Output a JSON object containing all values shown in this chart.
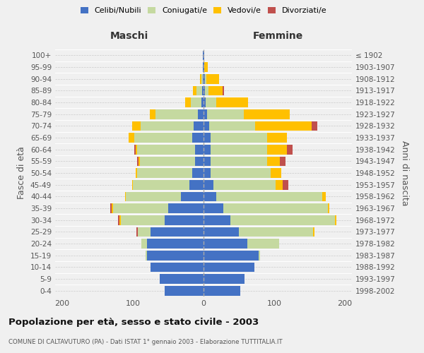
{
  "age_groups": [
    "0-4",
    "5-9",
    "10-14",
    "15-19",
    "20-24",
    "25-29",
    "30-34",
    "35-39",
    "40-44",
    "45-49",
    "50-54",
    "55-59",
    "60-64",
    "65-69",
    "70-74",
    "75-79",
    "80-84",
    "85-89",
    "90-94",
    "95-99",
    "100+"
  ],
  "birth_years": [
    "1998-2002",
    "1993-1997",
    "1988-1992",
    "1983-1987",
    "1978-1982",
    "1973-1977",
    "1968-1972",
    "1963-1967",
    "1958-1962",
    "1953-1957",
    "1948-1952",
    "1943-1947",
    "1938-1942",
    "1933-1937",
    "1928-1932",
    "1923-1927",
    "1918-1922",
    "1913-1917",
    "1908-1912",
    "1903-1907",
    "≤ 1902"
  ],
  "maschi": {
    "celibi": [
      55,
      62,
      75,
      80,
      80,
      75,
      55,
      50,
      32,
      20,
      16,
      12,
      12,
      16,
      14,
      8,
      3,
      2,
      1,
      1,
      1
    ],
    "coniugati": [
      0,
      0,
      0,
      2,
      8,
      18,
      62,
      78,
      78,
      80,
      78,
      78,
      82,
      82,
      75,
      60,
      15,
      8,
      2,
      0,
      0
    ],
    "vedovi": [
      0,
      0,
      0,
      0,
      0,
      0,
      2,
      2,
      1,
      1,
      2,
      2,
      2,
      8,
      12,
      8,
      8,
      5,
      2,
      0,
      0
    ],
    "divorziati": [
      0,
      0,
      0,
      0,
      0,
      2,
      2,
      2,
      0,
      0,
      0,
      2,
      2,
      0,
      0,
      0,
      0,
      0,
      0,
      0,
      0
    ]
  },
  "femmine": {
    "nubili": [
      52,
      58,
      72,
      78,
      62,
      50,
      38,
      28,
      18,
      14,
      10,
      10,
      10,
      10,
      8,
      5,
      3,
      2,
      2,
      1,
      1
    ],
    "coniugate": [
      0,
      0,
      0,
      2,
      45,
      105,
      148,
      148,
      150,
      88,
      85,
      80,
      80,
      80,
      65,
      52,
      15,
      5,
      2,
      0,
      0
    ],
    "vedove": [
      0,
      0,
      0,
      0,
      0,
      2,
      2,
      2,
      5,
      10,
      15,
      18,
      28,
      28,
      80,
      65,
      45,
      20,
      18,
      5,
      0
    ],
    "divorziate": [
      0,
      0,
      0,
      0,
      0,
      0,
      0,
      0,
      0,
      8,
      0,
      8,
      8,
      0,
      8,
      0,
      0,
      2,
      0,
      0,
      0
    ]
  },
  "colors": {
    "celibi_nubili": "#4472c4",
    "coniugati": "#c5d9a0",
    "vedovi": "#ffc000",
    "divorziati": "#c0504d"
  },
  "xlim": 210,
  "title": "Popolazione per età, sesso e stato civile - 2003",
  "subtitle": "COMUNE DI CALTAVUTURO (PA) - Dati ISTAT 1° gennaio 2003 - Elaborazione TUTTITALIA.IT",
  "ylabel_left": "Fasce di età",
  "ylabel_right": "Anni di nascita",
  "xlabel_maschi": "Maschi",
  "xlabel_femmine": "Femmine",
  "bg_color": "#f0f0f0",
  "legend_labels": [
    "Celibi/Nubili",
    "Coniugati/e",
    "Vedovi/e",
    "Divorziati/e"
  ]
}
